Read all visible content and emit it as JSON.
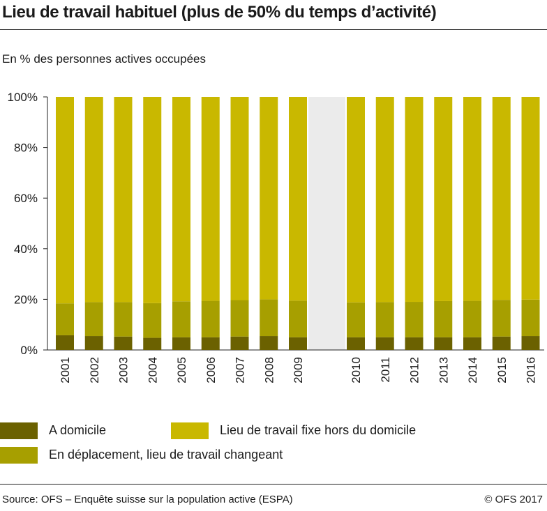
{
  "title": "Lieu de travail habituel (plus de 50% du temps d’activité)",
  "subtitle": "En % des personnes actives occupées",
  "source": "Source: OFS – Enquête suisse sur la population active (ESPA)",
  "copyright": "© OFS 2017",
  "colors": {
    "a_domicile": "#6b6100",
    "en_deplacement": "#a79f00",
    "lieu_fixe": "#c9b800",
    "gap_band": "#ebebeb",
    "axis": "#222222"
  },
  "legend": [
    {
      "key": "a_domicile",
      "label": "A domicile"
    },
    {
      "key": "lieu_fixe",
      "label": "Lieu de travail fixe hors du domicile"
    },
    {
      "key": "en_deplacement",
      "label": "En déplacement, lieu de travail changeant"
    }
  ],
  "chart_data": {
    "type": "bar",
    "stacked": true,
    "categories": [
      "2001",
      "2002",
      "2003",
      "2004",
      "2005",
      "2006",
      "2007",
      "2008",
      "2009",
      "2010",
      "2011",
      "2012",
      "2013",
      "2014",
      "2015",
      "2016"
    ],
    "break_after": "2009",
    "yticks": [
      "0%",
      "20%",
      "40%",
      "60%",
      "80%",
      "100%"
    ],
    "ylim": [
      0,
      100
    ],
    "series": [
      {
        "name": "A domicile",
        "key": "a_domicile",
        "values": [
          5.8,
          5.5,
          5.3,
          4.8,
          5.0,
          5.0,
          5.3,
          5.5,
          5.0,
          5.0,
          5.0,
          5.0,
          5.0,
          5.0,
          5.3,
          5.5
        ]
      },
      {
        "name": "En déplacement, lieu de travail changeant",
        "key": "en_deplacement",
        "values": [
          12.6,
          13.4,
          13.6,
          13.7,
          14.2,
          14.4,
          14.4,
          14.5,
          14.5,
          13.8,
          13.9,
          14.0,
          14.3,
          14.4,
          14.5,
          14.4
        ]
      },
      {
        "name": "Lieu de travail fixe hors du domicile",
        "key": "lieu_fixe",
        "values": [
          81.6,
          81.1,
          81.1,
          81.5,
          80.8,
          80.6,
          80.3,
          80.0,
          80.5,
          81.2,
          81.1,
          81.0,
          80.7,
          80.6,
          80.2,
          80.1
        ]
      }
    ],
    "grid": false,
    "legend_position": "bottom"
  }
}
